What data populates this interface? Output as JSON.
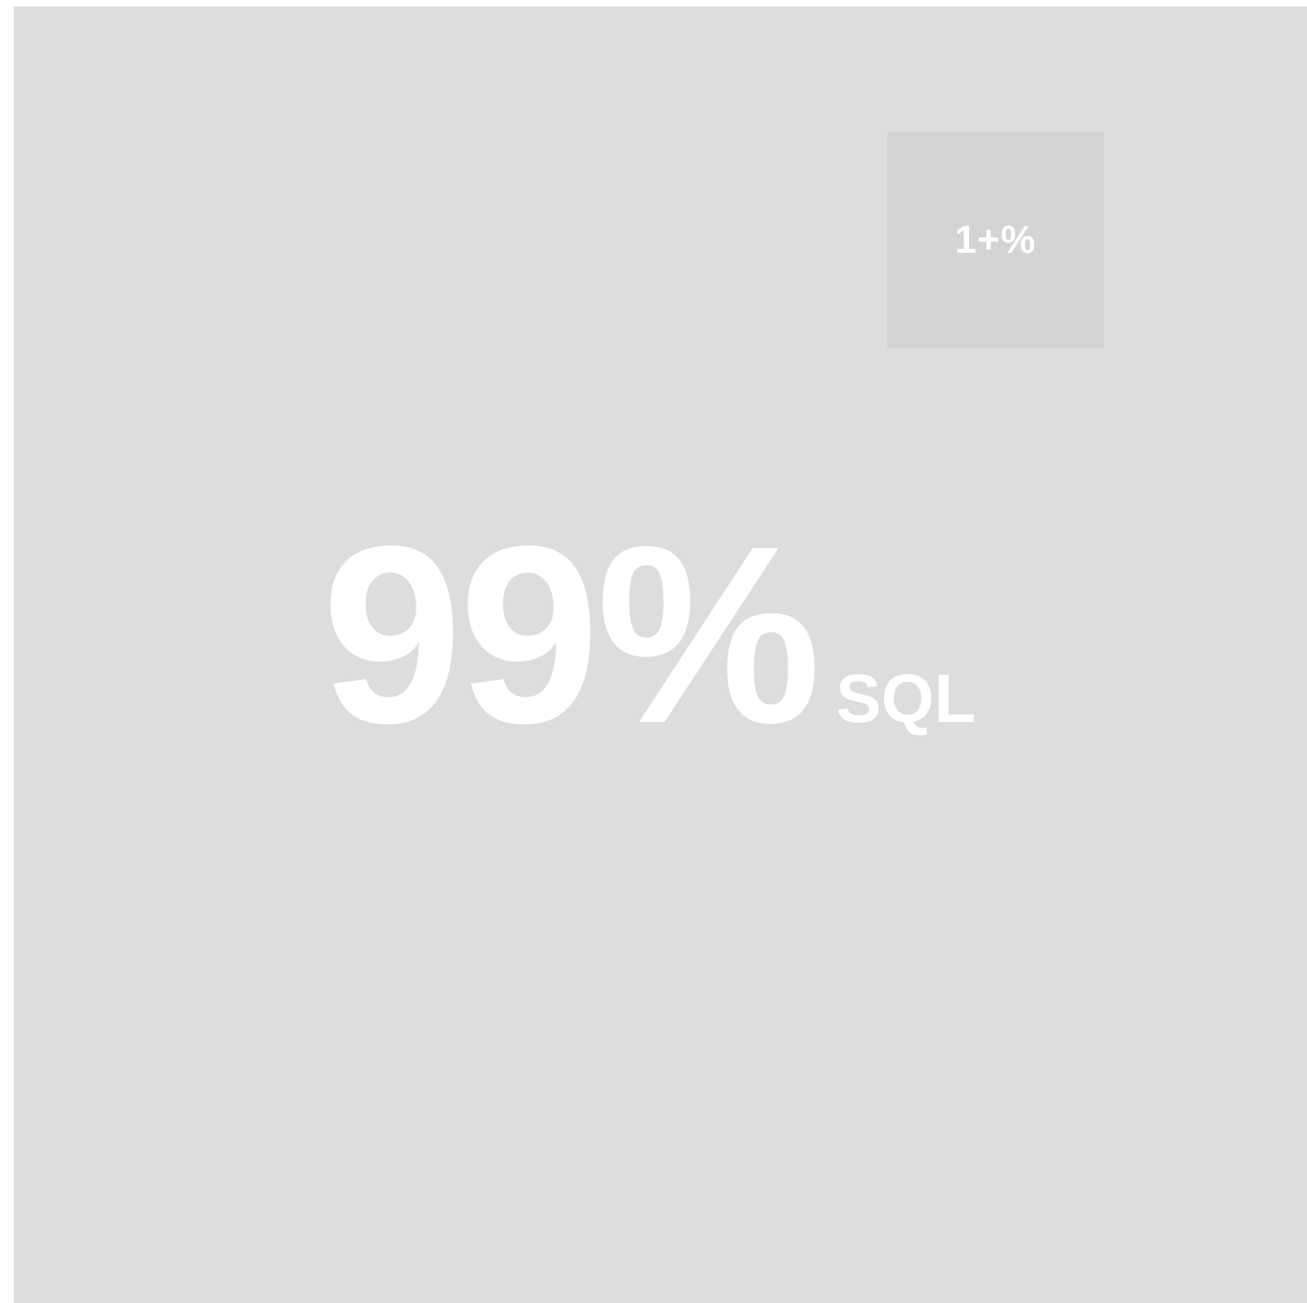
{
  "badge": {
    "text": "1+%"
  },
  "headline": {
    "value": "99%",
    "suffix": "SQL"
  }
}
